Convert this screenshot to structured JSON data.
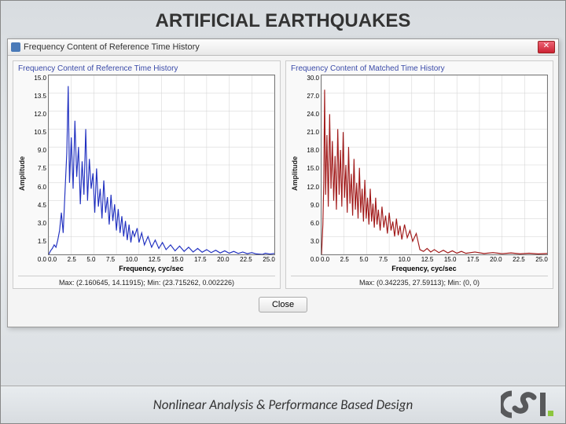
{
  "page": {
    "title": "ARTIFICIAL EARTHQUAKES"
  },
  "window": {
    "title": "Frequency Content of Reference Time History"
  },
  "close_button": {
    "label": "Close"
  },
  "footer": {
    "text": "Nonlinear Analysis & Performance Based Design"
  },
  "logo": {
    "fill": "#58595b",
    "accent": "#8dc63f"
  },
  "chart_left": {
    "type": "line-spectrum",
    "title": "Frequency Content of Reference Time History",
    "xlabel": "Frequency, cyc/sec",
    "ylabel": "Amplitude",
    "xlim": [
      0,
      25
    ],
    "ylim": [
      0,
      15
    ],
    "yticks": [
      0.0,
      1.5,
      3.0,
      4.5,
      6.0,
      7.5,
      9.0,
      10.5,
      12.0,
      13.5,
      15.0
    ],
    "xticks": [
      0.0,
      2.5,
      5.0,
      7.5,
      10.0,
      12.5,
      15.0,
      17.5,
      20.0,
      22.5,
      25.0
    ],
    "line_color": "#2030c0",
    "line_width": 1.2,
    "background": "#ffffff",
    "grid_color": "#d0d0d0",
    "stats": "Max: (2.160645, 14.11915);   Min: (23.715262, 0.002226)",
    "data": [
      [
        0.0,
        0.0
      ],
      [
        0.2,
        0.3
      ],
      [
        0.4,
        0.5
      ],
      [
        0.6,
        0.8
      ],
      [
        0.8,
        0.6
      ],
      [
        1.0,
        1.2
      ],
      [
        1.2,
        2.0
      ],
      [
        1.4,
        3.5
      ],
      [
        1.6,
        1.8
      ],
      [
        1.8,
        5.2
      ],
      [
        2.0,
        8.5
      ],
      [
        2.16,
        14.1
      ],
      [
        2.3,
        6.0
      ],
      [
        2.5,
        9.8
      ],
      [
        2.7,
        5.5
      ],
      [
        2.9,
        11.2
      ],
      [
        3.1,
        6.5
      ],
      [
        3.3,
        9.0
      ],
      [
        3.5,
        4.2
      ],
      [
        3.7,
        7.8
      ],
      [
        3.9,
        5.0
      ],
      [
        4.1,
        10.5
      ],
      [
        4.3,
        4.5
      ],
      [
        4.5,
        8.0
      ],
      [
        4.7,
        5.5
      ],
      [
        4.9,
        6.8
      ],
      [
        5.1,
        3.5
      ],
      [
        5.3,
        7.2
      ],
      [
        5.5,
        4.0
      ],
      [
        5.7,
        5.5
      ],
      [
        5.9,
        3.0
      ],
      [
        6.1,
        6.2
      ],
      [
        6.3,
        3.5
      ],
      [
        6.5,
        4.8
      ],
      [
        6.7,
        2.5
      ],
      [
        6.9,
        5.0
      ],
      [
        7.1,
        2.8
      ],
      [
        7.3,
        4.2
      ],
      [
        7.5,
        2.0
      ],
      [
        7.7,
        3.8
      ],
      [
        7.9,
        1.8
      ],
      [
        8.1,
        3.2
      ],
      [
        8.3,
        1.5
      ],
      [
        8.5,
        2.8
      ],
      [
        8.7,
        1.2
      ],
      [
        8.9,
        2.5
      ],
      [
        9.1,
        1.0
      ],
      [
        9.3,
        2.0
      ],
      [
        9.5,
        1.5
      ],
      [
        9.8,
        2.2
      ],
      [
        10.0,
        1.0
      ],
      [
        10.3,
        1.8
      ],
      [
        10.6,
        0.8
      ],
      [
        11.0,
        1.5
      ],
      [
        11.4,
        0.6
      ],
      [
        11.8,
        1.2
      ],
      [
        12.2,
        0.5
      ],
      [
        12.6,
        1.0
      ],
      [
        13.0,
        0.4
      ],
      [
        13.5,
        0.8
      ],
      [
        14.0,
        0.3
      ],
      [
        14.5,
        0.7
      ],
      [
        15.0,
        0.25
      ],
      [
        15.5,
        0.6
      ],
      [
        16.0,
        0.2
      ],
      [
        16.5,
        0.5
      ],
      [
        17.0,
        0.18
      ],
      [
        17.5,
        0.4
      ],
      [
        18.0,
        0.15
      ],
      [
        18.5,
        0.35
      ],
      [
        19.0,
        0.12
      ],
      [
        19.5,
        0.3
      ],
      [
        20.0,
        0.1
      ],
      [
        20.5,
        0.25
      ],
      [
        21.0,
        0.08
      ],
      [
        21.5,
        0.2
      ],
      [
        22.0,
        0.06
      ],
      [
        22.5,
        0.15
      ],
      [
        23.0,
        0.04
      ],
      [
        23.7,
        0.002
      ],
      [
        24.0,
        0.1
      ],
      [
        24.5,
        0.03
      ],
      [
        25.0,
        0.08
      ]
    ]
  },
  "chart_right": {
    "type": "line-spectrum",
    "title": "Frequency Content of Matched Time History",
    "xlabel": "Frequency, cyc/sec",
    "ylabel": "Amplitude",
    "xlim": [
      0,
      25
    ],
    "ylim": [
      0,
      30
    ],
    "yticks": [
      0.0,
      3.0,
      6.0,
      9.0,
      12.0,
      15.0,
      18.0,
      21.0,
      24.0,
      27.0,
      30.0
    ],
    "xticks": [
      0.0,
      2.5,
      5.0,
      7.5,
      10.0,
      12.5,
      15.0,
      17.5,
      20.0,
      22.5,
      25.0
    ],
    "line_color": "#a01818",
    "line_width": 1.2,
    "background": "#ffffff",
    "grid_color": "#d0d0d0",
    "stats": "Max: (0.342235, 27.59113);   Min: (0, 0)",
    "data": [
      [
        0.0,
        0.0
      ],
      [
        0.15,
        5.0
      ],
      [
        0.25,
        12.0
      ],
      [
        0.342,
        27.6
      ],
      [
        0.45,
        10.0
      ],
      [
        0.6,
        20.0
      ],
      [
        0.75,
        8.0
      ],
      [
        0.9,
        23.5
      ],
      [
        1.05,
        11.0
      ],
      [
        1.2,
        19.0
      ],
      [
        1.35,
        9.0
      ],
      [
        1.5,
        16.5
      ],
      [
        1.65,
        7.5
      ],
      [
        1.8,
        21.0
      ],
      [
        1.95,
        10.0
      ],
      [
        2.1,
        17.5
      ],
      [
        2.25,
        8.0
      ],
      [
        2.4,
        20.5
      ],
      [
        2.55,
        9.5
      ],
      [
        2.7,
        15.0
      ],
      [
        2.85,
        7.0
      ],
      [
        3.0,
        18.0
      ],
      [
        3.15,
        8.5
      ],
      [
        3.3,
        13.5
      ],
      [
        3.45,
        6.5
      ],
      [
        3.6,
        16.0
      ],
      [
        3.75,
        7.5
      ],
      [
        3.9,
        12.0
      ],
      [
        4.05,
        6.0
      ],
      [
        4.2,
        14.5
      ],
      [
        4.35,
        7.0
      ],
      [
        4.5,
        11.0
      ],
      [
        4.65,
        5.5
      ],
      [
        4.8,
        12.5
      ],
      [
        4.95,
        6.0
      ],
      [
        5.1,
        9.5
      ],
      [
        5.25,
        5.0
      ],
      [
        5.4,
        11.0
      ],
      [
        5.55,
        5.5
      ],
      [
        5.7,
        8.5
      ],
      [
        5.85,
        4.5
      ],
      [
        6.0,
        9.5
      ],
      [
        6.15,
        5.0
      ],
      [
        6.3,
        7.5
      ],
      [
        6.5,
        4.0
      ],
      [
        6.7,
        8.0
      ],
      [
        6.9,
        4.5
      ],
      [
        7.1,
        6.5
      ],
      [
        7.3,
        3.5
      ],
      [
        7.5,
        7.0
      ],
      [
        7.7,
        4.0
      ],
      [
        7.9,
        5.5
      ],
      [
        8.1,
        3.0
      ],
      [
        8.3,
        6.0
      ],
      [
        8.5,
        3.2
      ],
      [
        8.7,
        4.8
      ],
      [
        8.9,
        2.5
      ],
      [
        9.2,
        5.0
      ],
      [
        9.5,
        2.8
      ],
      [
        9.8,
        4.0
      ],
      [
        10.1,
        2.2
      ],
      [
        10.5,
        3.5
      ],
      [
        10.9,
        0.8
      ],
      [
        11.3,
        0.5
      ],
      [
        11.7,
        1.0
      ],
      [
        12.1,
        0.4
      ],
      [
        12.5,
        0.8
      ],
      [
        13.0,
        0.3
      ],
      [
        13.5,
        0.7
      ],
      [
        14.0,
        0.25
      ],
      [
        14.5,
        0.6
      ],
      [
        15.0,
        0.2
      ],
      [
        15.5,
        0.5
      ],
      [
        16.0,
        0.18
      ],
      [
        17.0,
        0.4
      ],
      [
        18.0,
        0.15
      ],
      [
        19.0,
        0.3
      ],
      [
        20.0,
        0.12
      ],
      [
        21.0,
        0.25
      ],
      [
        22.0,
        0.1
      ],
      [
        23.0,
        0.2
      ],
      [
        24.0,
        0.08
      ],
      [
        25.0,
        0.15
      ]
    ]
  }
}
